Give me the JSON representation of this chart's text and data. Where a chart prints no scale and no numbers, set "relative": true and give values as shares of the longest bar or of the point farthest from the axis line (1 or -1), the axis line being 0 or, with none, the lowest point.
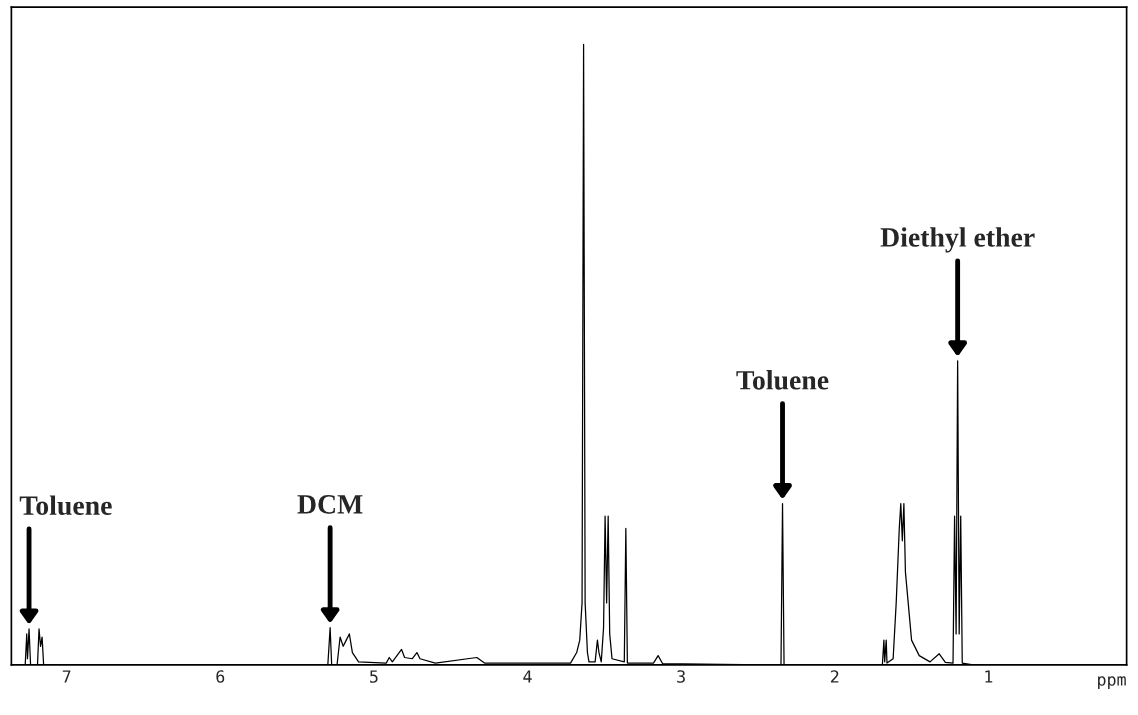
{
  "chart_data": {
    "type": "line",
    "relative": true,
    "xlabel": "ppm",
    "xlim": [
      7.36,
      0.1
    ],
    "xticks": [
      7,
      6,
      5,
      4,
      3,
      2,
      1
    ],
    "grid": false,
    "legend": false,
    "marker": "none",
    "line_style": "solid",
    "annotations": [
      {
        "text": "Toluene",
        "x": 7.245,
        "y": 0.058
      },
      {
        "text": "DCM",
        "x": 5.285,
        "y": 0.06
      },
      {
        "text": "Toluene",
        "x": 2.34,
        "y": 0.26
      },
      {
        "text": "Diethyl ether",
        "x": 1.2,
        "y": 0.49
      }
    ],
    "series": [
      {
        "color": "#000000",
        "x": [
          7.36,
          7.27,
          7.26,
          7.255,
          7.245,
          7.235,
          7.19,
          7.18,
          7.17,
          7.16,
          7.15,
          5.3,
          5.285,
          5.275,
          5.24,
          5.22,
          5.2,
          5.18,
          5.16,
          5.14,
          5.1,
          4.92,
          4.9,
          4.88,
          4.85,
          4.82,
          4.8,
          4.75,
          4.72,
          4.7,
          4.6,
          4.33,
          4.28,
          3.72,
          3.68,
          3.66,
          3.645,
          3.635,
          3.625,
          3.61,
          3.6,
          3.56,
          3.545,
          3.535,
          3.52,
          3.505,
          3.495,
          3.485,
          3.475,
          3.465,
          3.45,
          3.37,
          3.36,
          3.35,
          3.18,
          3.15,
          3.12,
          2.35,
          2.34,
          2.33,
          1.69,
          1.68,
          1.675,
          1.665,
          1.66,
          1.62,
          1.6,
          1.58,
          1.57,
          1.56,
          1.55,
          1.54,
          1.5,
          1.45,
          1.38,
          1.32,
          1.28,
          1.23,
          1.22,
          1.21,
          1.2,
          1.19,
          1.18,
          1.17,
          1.1,
          0.1
        ],
        "values": [
          0,
          0,
          0.05,
          0.01,
          0.058,
          0,
          0,
          0.058,
          0.03,
          0.045,
          0,
          0,
          0.06,
          0,
          0,
          0.045,
          0.03,
          0.04,
          0.05,
          0.02,
          0.005,
          0.003,
          0.012,
          0.005,
          0.015,
          0.025,
          0.012,
          0.01,
          0.02,
          0.01,
          0.003,
          0.012,
          0.003,
          0.003,
          0.02,
          0.04,
          0.1,
          1,
          0.1,
          0.02,
          0.005,
          0.005,
          0.04,
          0.02,
          0.005,
          0.06,
          0.24,
          0.1,
          0.24,
          0.05,
          0.01,
          0.005,
          0.22,
          0.003,
          0.003,
          0.015,
          0.002,
          0,
          0.26,
          0,
          0,
          0.04,
          0.005,
          0.04,
          0.003,
          0.01,
          0.1,
          0.22,
          0.26,
          0.2,
          0.26,
          0.15,
          0.04,
          0.015,
          0.005,
          0.018,
          0.004,
          0.003,
          0.24,
          0.05,
          0.49,
          0.05,
          0.24,
          0.003,
          0,
          0
        ]
      }
    ]
  }
}
